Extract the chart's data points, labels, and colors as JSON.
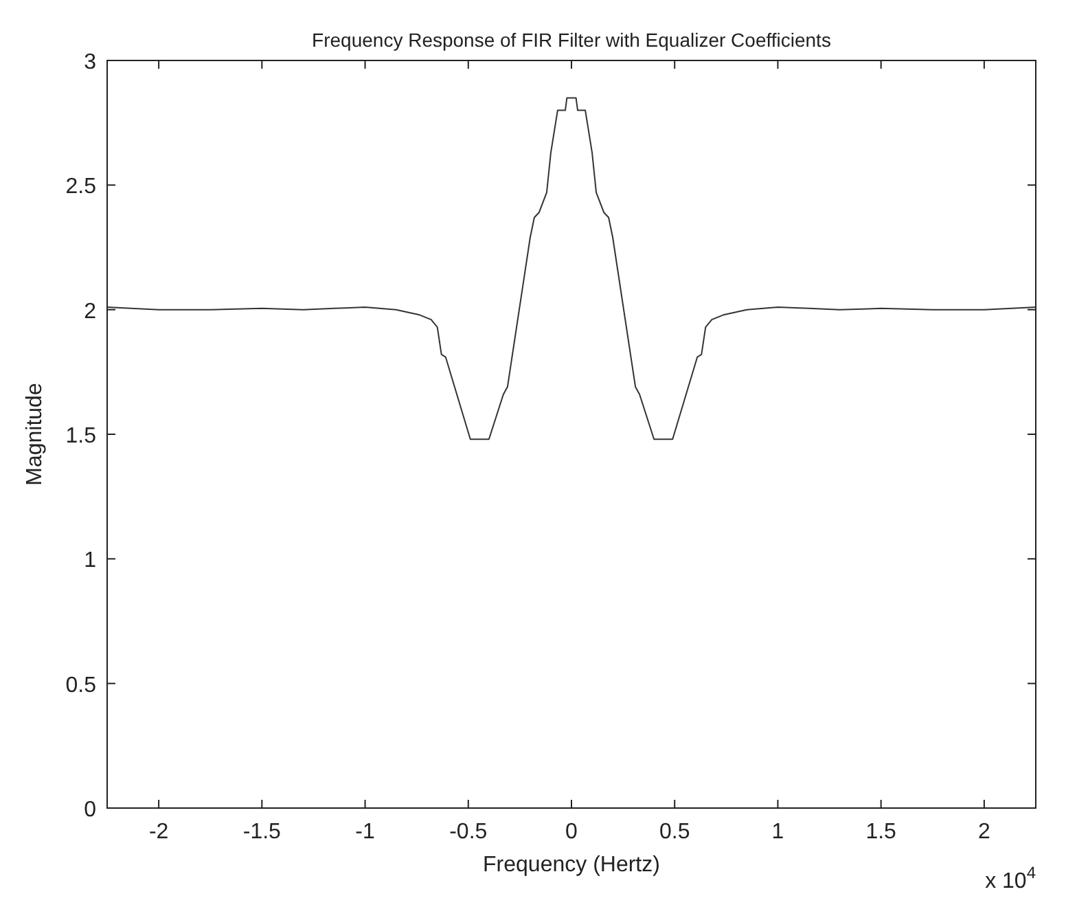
{
  "chart_data": {
    "type": "line",
    "title": "Frequency Response of FIR Filter with Equalizer Coefficients",
    "xlabel": "Frequency (Hertz)",
    "ylabel": "Magnitude",
    "annotations": [
      "x 10$^{4}$"
    ],
    "xlim": [
      -2.25,
      2.25
    ],
    "xticks": [
      -2,
      -1.5,
      -1,
      -0.5,
      0,
      0.5,
      1,
      1.5,
      2
    ],
    "ylim": [
      0,
      3
    ],
    "yticks": [
      0,
      0.5,
      1,
      1.5,
      2,
      2.5,
      3
    ],
    "grid": false,
    "marker": "none",
    "line_style": "solid",
    "series": [
      {
        "color": "#333333",
        "x": [
          -2.25,
          -2.0,
          -1.75,
          -1.5,
          -1.3,
          -1.15,
          -1.0,
          -0.85,
          -0.74,
          -0.68,
          -0.65,
          -0.63,
          -0.61,
          -0.49,
          -0.4,
          -0.33,
          -0.31,
          -0.2,
          -0.18,
          -0.157,
          -0.12,
          -0.1,
          -0.067,
          -0.03,
          -0.022,
          0.022,
          0.03,
          0.067,
          0.1,
          0.12,
          0.157,
          0.18,
          0.2,
          0.31,
          0.33,
          0.4,
          0.49,
          0.61,
          0.63,
          0.65,
          0.68,
          0.74,
          0.85,
          1.0,
          1.15,
          1.3,
          1.5,
          1.75,
          2.0,
          2.25
        ],
        "values": [
          2.01,
          2.0,
          2.0,
          2.005,
          2.0,
          2.005,
          2.01,
          2.0,
          1.98,
          1.96,
          1.93,
          1.82,
          1.81,
          1.48,
          1.48,
          1.66,
          1.69,
          2.29,
          2.37,
          2.39,
          2.47,
          2.63,
          2.8,
          2.8,
          2.85,
          2.85,
          2.8,
          2.8,
          2.63,
          2.47,
          2.39,
          2.37,
          2.29,
          1.69,
          1.66,
          1.48,
          1.48,
          1.81,
          1.82,
          1.93,
          1.96,
          1.98,
          2.0,
          2.01,
          2.005,
          2.0,
          2.005,
          2.0,
          2.0,
          2.01
        ]
      }
    ]
  }
}
